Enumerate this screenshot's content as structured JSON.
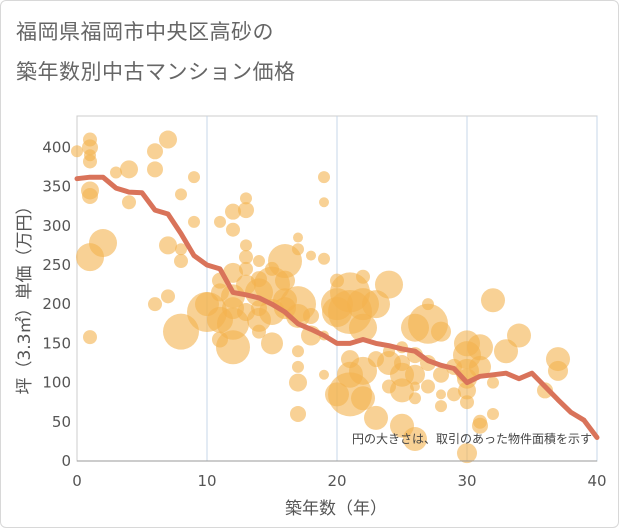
{
  "title": [
    "福岡県福岡市中央区高砂の",
    "築年数別中古マンション価格"
  ],
  "chart_data": {
    "type": "scatter",
    "xlabel": "築年数（年）",
    "ylabel": "坪（3.3㎡）単価（万円）",
    "xlim": [
      0,
      40
    ],
    "ylim": [
      0,
      440
    ],
    "xticks": [
      0,
      10,
      20,
      30,
      40
    ],
    "yticks": [
      0,
      50,
      100,
      150,
      200,
      250,
      300,
      350,
      400
    ],
    "grid": "vertical",
    "annotation": "円の大きさは、取引のあった物件面積を示す",
    "colors": {
      "bubble": "#f3b24f",
      "line": "#d9735a"
    },
    "points": [
      {
        "x": 0,
        "y": 395,
        "r": 6
      },
      {
        "x": 1,
        "y": 410,
        "r": 7
      },
      {
        "x": 1,
        "y": 400,
        "r": 8
      },
      {
        "x": 1,
        "y": 390,
        "r": 6
      },
      {
        "x": 1,
        "y": 382,
        "r": 7
      },
      {
        "x": 1,
        "y": 345,
        "r": 9
      },
      {
        "x": 1,
        "y": 338,
        "r": 8
      },
      {
        "x": 1,
        "y": 260,
        "r": 14
      },
      {
        "x": 1,
        "y": 158,
        "r": 7
      },
      {
        "x": 2,
        "y": 278,
        "r": 14
      },
      {
        "x": 3,
        "y": 368,
        "r": 6
      },
      {
        "x": 4,
        "y": 372,
        "r": 9
      },
      {
        "x": 4,
        "y": 330,
        "r": 7
      },
      {
        "x": 6,
        "y": 395,
        "r": 8
      },
      {
        "x": 6,
        "y": 372,
        "r": 8
      },
      {
        "x": 6,
        "y": 200,
        "r": 7
      },
      {
        "x": 7,
        "y": 410,
        "r": 9
      },
      {
        "x": 7,
        "y": 275,
        "r": 9
      },
      {
        "x": 7,
        "y": 210,
        "r": 7
      },
      {
        "x": 8,
        "y": 340,
        "r": 6
      },
      {
        "x": 8,
        "y": 270,
        "r": 6
      },
      {
        "x": 8,
        "y": 255,
        "r": 7
      },
      {
        "x": 8,
        "y": 165,
        "r": 18
      },
      {
        "x": 9,
        "y": 362,
        "r": 6
      },
      {
        "x": 9,
        "y": 305,
        "r": 6
      },
      {
        "x": 10,
        "y": 200,
        "r": 12
      },
      {
        "x": 10,
        "y": 190,
        "r": 20
      },
      {
        "x": 11,
        "y": 305,
        "r": 6
      },
      {
        "x": 11,
        "y": 230,
        "r": 8
      },
      {
        "x": 11,
        "y": 215,
        "r": 9
      },
      {
        "x": 11,
        "y": 180,
        "r": 13
      },
      {
        "x": 11,
        "y": 155,
        "r": 8
      },
      {
        "x": 12,
        "y": 318,
        "r": 8
      },
      {
        "x": 12,
        "y": 295,
        "r": 7
      },
      {
        "x": 12,
        "y": 240,
        "r": 10
      },
      {
        "x": 12,
        "y": 210,
        "r": 12
      },
      {
        "x": 12,
        "y": 195,
        "r": 11
      },
      {
        "x": 12,
        "y": 175,
        "r": 16
      },
      {
        "x": 12,
        "y": 145,
        "r": 17
      },
      {
        "x": 13,
        "y": 335,
        "r": 6
      },
      {
        "x": 13,
        "y": 320,
        "r": 8
      },
      {
        "x": 13,
        "y": 275,
        "r": 6
      },
      {
        "x": 13,
        "y": 260,
        "r": 7
      },
      {
        "x": 13,
        "y": 245,
        "r": 7
      },
      {
        "x": 13,
        "y": 225,
        "r": 10
      },
      {
        "x": 13,
        "y": 190,
        "r": 9
      },
      {
        "x": 14,
        "y": 255,
        "r": 6
      },
      {
        "x": 14,
        "y": 232,
        "r": 8
      },
      {
        "x": 14,
        "y": 215,
        "r": 14
      },
      {
        "x": 14,
        "y": 195,
        "r": 8
      },
      {
        "x": 14,
        "y": 180,
        "r": 12
      },
      {
        "x": 14,
        "y": 165,
        "r": 7
      },
      {
        "x": 15,
        "y": 245,
        "r": 7
      },
      {
        "x": 15,
        "y": 225,
        "r": 18
      },
      {
        "x": 15,
        "y": 190,
        "r": 13
      },
      {
        "x": 15,
        "y": 150,
        "r": 11
      },
      {
        "x": 16,
        "y": 255,
        "r": 17
      },
      {
        "x": 16,
        "y": 230,
        "r": 10
      },
      {
        "x": 16,
        "y": 205,
        "r": 12
      },
      {
        "x": 16,
        "y": 195,
        "r": 11
      },
      {
        "x": 17,
        "y": 285,
        "r": 5
      },
      {
        "x": 17,
        "y": 270,
        "r": 6
      },
      {
        "x": 17,
        "y": 200,
        "r": 18
      },
      {
        "x": 17,
        "y": 185,
        "r": 12
      },
      {
        "x": 17,
        "y": 140,
        "r": 6
      },
      {
        "x": 17,
        "y": 120,
        "r": 6
      },
      {
        "x": 17,
        "y": 100,
        "r": 9
      },
      {
        "x": 17,
        "y": 60,
        "r": 8
      },
      {
        "x": 18,
        "y": 262,
        "r": 5
      },
      {
        "x": 18,
        "y": 185,
        "r": 8
      },
      {
        "x": 18,
        "y": 160,
        "r": 10
      },
      {
        "x": 19,
        "y": 362,
        "r": 6
      },
      {
        "x": 19,
        "y": 330,
        "r": 5
      },
      {
        "x": 19,
        "y": 258,
        "r": 6
      },
      {
        "x": 19,
        "y": 160,
        "r": 5
      },
      {
        "x": 19,
        "y": 110,
        "r": 5
      },
      {
        "x": 20,
        "y": 230,
        "r": 7
      },
      {
        "x": 20,
        "y": 200,
        "r": 16
      },
      {
        "x": 20,
        "y": 190,
        "r": 15
      },
      {
        "x": 20,
        "y": 85,
        "r": 12
      },
      {
        "x": 21,
        "y": 215,
        "r": 20
      },
      {
        "x": 21,
        "y": 190,
        "r": 22
      },
      {
        "x": 21,
        "y": 130,
        "r": 9
      },
      {
        "x": 21,
        "y": 110,
        "r": 13
      },
      {
        "x": 21,
        "y": 85,
        "r": 22
      },
      {
        "x": 22,
        "y": 235,
        "r": 7
      },
      {
        "x": 22,
        "y": 200,
        "r": 16
      },
      {
        "x": 22,
        "y": 170,
        "r": 14
      },
      {
        "x": 22,
        "y": 115,
        "r": 14
      },
      {
        "x": 22,
        "y": 80,
        "r": 12
      },
      {
        "x": 23,
        "y": 200,
        "r": 14
      },
      {
        "x": 23,
        "y": 130,
        "r": 8
      },
      {
        "x": 23,
        "y": 55,
        "r": 12
      },
      {
        "x": 24,
        "y": 225,
        "r": 14
      },
      {
        "x": 24,
        "y": 140,
        "r": 6
      },
      {
        "x": 24,
        "y": 125,
        "r": 12
      },
      {
        "x": 24,
        "y": 95,
        "r": 7
      },
      {
        "x": 25,
        "y": 145,
        "r": 6
      },
      {
        "x": 25,
        "y": 125,
        "r": 8
      },
      {
        "x": 25,
        "y": 110,
        "r": 12
      },
      {
        "x": 25,
        "y": 90,
        "r": 12
      },
      {
        "x": 25,
        "y": 45,
        "r": 12
      },
      {
        "x": 26,
        "y": 170,
        "r": 14
      },
      {
        "x": 26,
        "y": 135,
        "r": 8
      },
      {
        "x": 26,
        "y": 110,
        "r": 10
      },
      {
        "x": 26,
        "y": 95,
        "r": 5
      },
      {
        "x": 26,
        "y": 80,
        "r": 6
      },
      {
        "x": 26,
        "y": 28,
        "r": 12
      },
      {
        "x": 27,
        "y": 200,
        "r": 6
      },
      {
        "x": 27,
        "y": 175,
        "r": 20
      },
      {
        "x": 27,
        "y": 125,
        "r": 8
      },
      {
        "x": 27,
        "y": 95,
        "r": 7
      },
      {
        "x": 28,
        "y": 165,
        "r": 10
      },
      {
        "x": 28,
        "y": 110,
        "r": 8
      },
      {
        "x": 28,
        "y": 85,
        "r": 5
      },
      {
        "x": 28,
        "y": 70,
        "r": 6
      },
      {
        "x": 29,
        "y": 120,
        "r": 8
      },
      {
        "x": 29,
        "y": 85,
        "r": 7
      },
      {
        "x": 30,
        "y": 150,
        "r": 13
      },
      {
        "x": 30,
        "y": 135,
        "r": 14
      },
      {
        "x": 30,
        "y": 115,
        "r": 12
      },
      {
        "x": 30,
        "y": 105,
        "r": 10
      },
      {
        "x": 30,
        "y": 90,
        "r": 9
      },
      {
        "x": 30,
        "y": 75,
        "r": 7
      },
      {
        "x": 30,
        "y": 10,
        "r": 10
      },
      {
        "x": 31,
        "y": 145,
        "r": 13
      },
      {
        "x": 31,
        "y": 120,
        "r": 11
      },
      {
        "x": 31,
        "y": 50,
        "r": 7
      },
      {
        "x": 31,
        "y": 45,
        "r": 8
      },
      {
        "x": 32,
        "y": 205,
        "r": 12
      },
      {
        "x": 32,
        "y": 100,
        "r": 6
      },
      {
        "x": 32,
        "y": 60,
        "r": 6
      },
      {
        "x": 33,
        "y": 140,
        "r": 12
      },
      {
        "x": 34,
        "y": 160,
        "r": 12
      },
      {
        "x": 36,
        "y": 90,
        "r": 8
      },
      {
        "x": 37,
        "y": 130,
        "r": 12
      },
      {
        "x": 37,
        "y": 115,
        "r": 10
      }
    ],
    "series": [
      {
        "x": [
          0,
          1,
          2,
          3,
          4,
          5,
          6,
          7,
          8,
          9,
          10,
          11,
          12,
          13,
          14,
          15,
          16,
          17,
          18,
          19,
          20,
          21,
          22,
          23,
          24,
          25,
          26,
          27,
          28,
          29,
          30,
          31,
          32,
          33,
          34,
          35,
          36,
          37,
          38,
          39,
          40
        ],
        "values": [
          360,
          362,
          362,
          348,
          343,
          342,
          320,
          315,
          290,
          262,
          250,
          245,
          215,
          212,
          208,
          200,
          190,
          175,
          168,
          160,
          150,
          150,
          155,
          150,
          147,
          143,
          140,
          128,
          122,
          118,
          100,
          108,
          110,
          112,
          105,
          112,
          95,
          78,
          62,
          52,
          30
        ]
      }
    ]
  }
}
